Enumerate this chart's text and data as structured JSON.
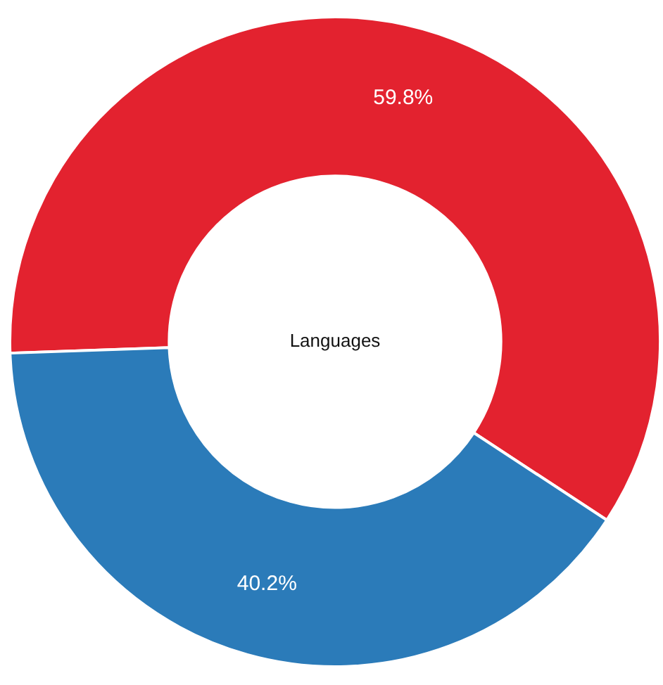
{
  "chart_data": {
    "type": "donut",
    "categories": [
      null,
      null
    ],
    "values": [
      59.8,
      40.2
    ],
    "value_labels": [
      "59.8%",
      "40.2%"
    ],
    "colors": [
      "#e3222f",
      "#2b7bb9"
    ],
    "annotations": [
      "Languages"
    ]
  }
}
